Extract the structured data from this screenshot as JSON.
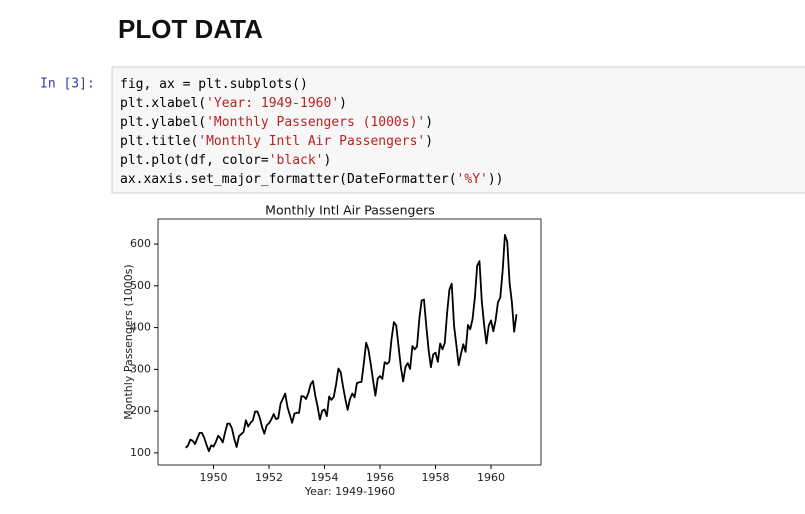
{
  "heading": "PLOT DATA",
  "prompt": "In [3]:",
  "code": {
    "lines": [
      [
        "fig, ax = plt.subplots()"
      ],
      [
        "plt.xlabel(",
        "'Year: 1949-1960'",
        ")"
      ],
      [
        "plt.ylabel(",
        "'Monthly Passengers (1000s)'",
        ")"
      ],
      [
        "plt.title(",
        "'Monthly Intl Air Passengers'",
        ")"
      ],
      [
        "plt.plot(df, color=",
        "'black'",
        ")"
      ],
      [
        "ax.xaxis.set_major_formatter(DateFormatter(",
        "'%Y'",
        "))"
      ]
    ],
    "string_color": "#ba2121"
  },
  "chart_data": {
    "type": "line",
    "title": "Monthly Intl Air Passengers",
    "x_label": "Year: 1949-1960",
    "y_label": "Monthly Passengers (1000s)",
    "color": "black",
    "x": [
      1949,
      1949.083,
      1949.167,
      1949.25,
      1949.333,
      1949.417,
      1949.5,
      1949.583,
      1949.667,
      1949.75,
      1949.833,
      1949.917,
      1950,
      1950.083,
      1950.167,
      1950.25,
      1950.333,
      1950.417,
      1950.5,
      1950.583,
      1950.667,
      1950.75,
      1950.833,
      1950.917,
      1951,
      1951.083,
      1951.167,
      1951.25,
      1951.333,
      1951.417,
      1951.5,
      1951.583,
      1951.667,
      1951.75,
      1951.833,
      1951.917,
      1952,
      1952.083,
      1952.167,
      1952.25,
      1952.333,
      1952.417,
      1952.5,
      1952.583,
      1952.667,
      1952.75,
      1952.833,
      1952.917,
      1953,
      1953.083,
      1953.167,
      1953.25,
      1953.333,
      1953.417,
      1953.5,
      1953.583,
      1953.667,
      1953.75,
      1953.833,
      1953.917,
      1954,
      1954.083,
      1954.167,
      1954.25,
      1954.333,
      1954.417,
      1954.5,
      1954.583,
      1954.667,
      1954.75,
      1954.833,
      1954.917,
      1955,
      1955.083,
      1955.167,
      1955.25,
      1955.333,
      1955.417,
      1955.5,
      1955.583,
      1955.667,
      1955.75,
      1955.833,
      1955.917,
      1956,
      1956.083,
      1956.167,
      1956.25,
      1956.333,
      1956.417,
      1956.5,
      1956.583,
      1956.667,
      1956.75,
      1956.833,
      1956.917,
      1957,
      1957.083,
      1957.167,
      1957.25,
      1957.333,
      1957.417,
      1957.5,
      1957.583,
      1957.667,
      1957.75,
      1957.833,
      1957.917,
      1958,
      1958.083,
      1958.167,
      1958.25,
      1958.333,
      1958.417,
      1958.5,
      1958.583,
      1958.667,
      1958.75,
      1958.833,
      1958.917,
      1959,
      1959.083,
      1959.167,
      1959.25,
      1959.333,
      1959.417,
      1959.5,
      1959.583,
      1959.667,
      1959.75,
      1959.833,
      1959.917,
      1960,
      1960.083,
      1960.167,
      1960.25,
      1960.333,
      1960.417,
      1960.5,
      1960.583,
      1960.667,
      1960.75,
      1960.833,
      1960.917
    ],
    "values": [
      112,
      118,
      132,
      129,
      121,
      135,
      148,
      148,
      136,
      119,
      104,
      118,
      115,
      126,
      141,
      135,
      125,
      149,
      170,
      170,
      158,
      133,
      114,
      140,
      145,
      150,
      178,
      163,
      172,
      178,
      199,
      199,
      184,
      162,
      146,
      166,
      171,
      180,
      193,
      181,
      183,
      218,
      230,
      242,
      209,
      191,
      172,
      194,
      196,
      196,
      236,
      235,
      229,
      243,
      264,
      272,
      237,
      211,
      180,
      201,
      204,
      188,
      235,
      227,
      234,
      264,
      302,
      293,
      259,
      229,
      203,
      229,
      242,
      233,
      267,
      269,
      270,
      315,
      364,
      347,
      312,
      274,
      237,
      278,
      284,
      277,
      317,
      313,
      318,
      374,
      413,
      405,
      355,
      306,
      271,
      306,
      315,
      301,
      356,
      348,
      355,
      422,
      465,
      467,
      404,
      347,
      305,
      336,
      340,
      318,
      362,
      348,
      363,
      435,
      491,
      505,
      404,
      359,
      310,
      337,
      360,
      342,
      406,
      396,
      420,
      472,
      548,
      559,
      463,
      407,
      362,
      405,
      417,
      391,
      419,
      461,
      472,
      535,
      622,
      606,
      508,
      461,
      390,
      432
    ],
    "xlim": [
      1948.0,
      1961.8
    ],
    "ylim": [
      71,
      660
    ],
    "xticks": [
      1950,
      1952,
      1954,
      1956,
      1958,
      1960
    ],
    "yticks": [
      100,
      200,
      300,
      400,
      500,
      600
    ]
  }
}
